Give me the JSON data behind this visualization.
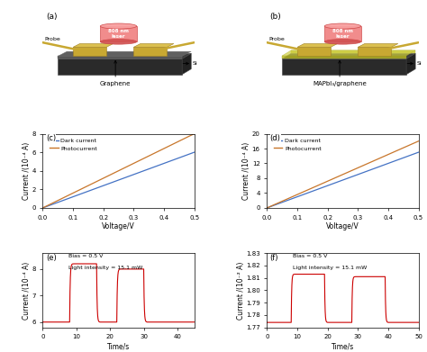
{
  "fig_width": 4.74,
  "fig_height": 3.91,
  "dpi": 100,
  "c_dark_slope": 12.0,
  "c_photo_slope": 16.0,
  "c_ylim": [
    0,
    8.0
  ],
  "c_yticks": [
    0,
    2.0,
    4.0,
    6.0,
    8.0
  ],
  "c_ylabel": "Current /(10⁻⁴ A)",
  "c_xlabel": "Voltage/V",
  "c_label": "(c)",
  "c_legend_dark": "Dark current",
  "c_legend_photo": "Photocurrent",
  "d_dark_slope": 30.0,
  "d_photo_slope": 36.0,
  "d_ylim": [
    0,
    20.0
  ],
  "d_yticks": [
    0,
    4.0,
    8.0,
    12.0,
    16.0,
    20.0
  ],
  "d_ylabel": "Current /(10⁻⁴ A)",
  "d_xlabel": "Voltage/V",
  "d_label": "(d)",
  "d_legend_dark": "Dark current",
  "d_legend_photo": "Photocurrent",
  "e_ylim": [
    5.8,
    8.6
  ],
  "e_yticks": [
    6.0,
    7.0,
    8.0
  ],
  "e_xlim": [
    0,
    45
  ],
  "e_xticks": [
    0,
    10,
    20,
    30,
    40
  ],
  "e_ylabel": "Current /(10⁻⁴ A)",
  "e_xlabel": "Time/s",
  "e_label": "(e)",
  "e_bias_text": "Bias = 0.5 V",
  "e_light_text": "Light intensity = 15.1 mW",
  "e_dark_level": 6.0,
  "e_high_level_1": 8.2,
  "e_high_level_2": 8.0,
  "e_high_level_3": 8.05,
  "f_ylim": [
    1.77,
    1.83
  ],
  "f_yticks": [
    1.77,
    1.78,
    1.79,
    1.8,
    1.81,
    1.82,
    1.83
  ],
  "f_xlim": [
    0,
    50
  ],
  "f_xticks": [
    0,
    10,
    20,
    30,
    40,
    50
  ],
  "f_ylabel": "Current /(10⁻² A)",
  "f_xlabel": "Time/s",
  "f_label": "(f)",
  "f_bias_text": "Bias = 0.5 V",
  "f_light_text": "Light intensity = 15.1 mW",
  "f_dark_level": 1.774,
  "f_high_level_1": 1.813,
  "f_high_level_2": 1.811,
  "dark_color": "#4472c4",
  "photo_color": "#c8762b",
  "pulse_color": "#cc0000",
  "label_a": "(a)",
  "label_b": "(b)",
  "text_graphene": "Graphene",
  "text_mapbli": "MAPbI₃/graphene"
}
